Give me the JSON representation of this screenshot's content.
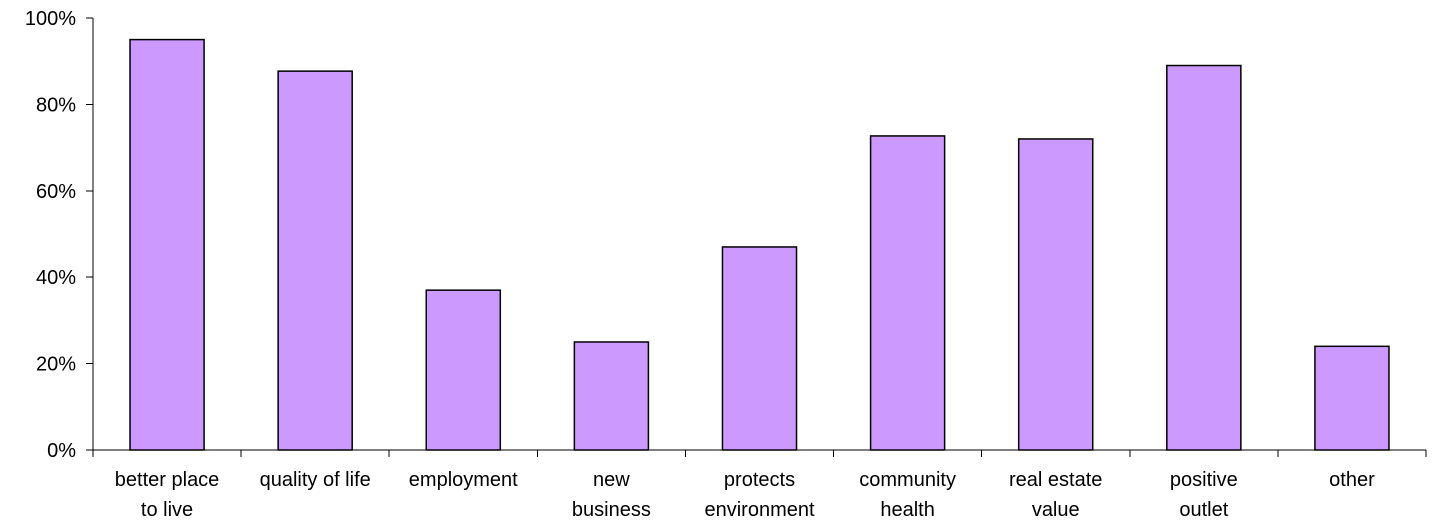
{
  "chart_data": {
    "type": "bar",
    "categories": [
      [
        "better place",
        "to live"
      ],
      [
        "quality of life"
      ],
      [
        "employment"
      ],
      [
        "new",
        "business"
      ],
      [
        "protects",
        "environment"
      ],
      [
        "community",
        "health"
      ],
      [
        "real estate",
        "value"
      ],
      [
        "positive",
        "outlet"
      ],
      [
        "other"
      ]
    ],
    "series": [
      {
        "values": [
          95,
          87.7,
          37,
          25,
          47,
          72.7,
          72,
          89,
          24
        ]
      }
    ],
    "ylim": [
      0,
      100
    ],
    "yticks": [
      0,
      20,
      40,
      60,
      80,
      100
    ],
    "ytick_labels": [
      "0%",
      "20%",
      "40%",
      "60%",
      "80%",
      "100%"
    ],
    "colors": {
      "bar_fill": "#CC99FF",
      "bar_stroke": "#000000",
      "axis": "#000000"
    },
    "grid": false,
    "legend": "none"
  }
}
